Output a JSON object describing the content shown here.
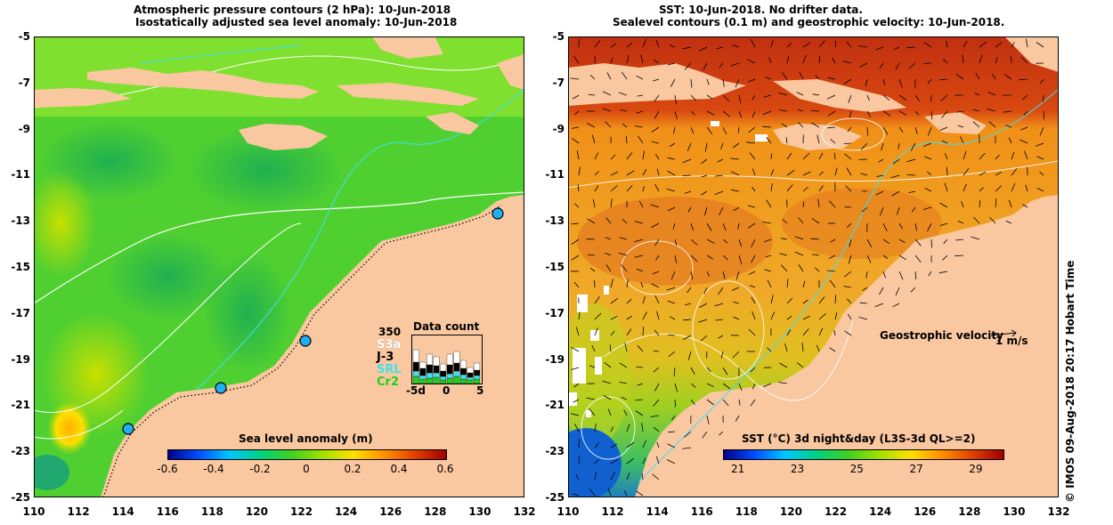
{
  "left_panel": {
    "title_line1": "Atmospheric pressure contours (2 hPa): 10-Jun-2018",
    "title_line2": "Isostatically adjusted sea level anomaly: 10-Jun-2018",
    "yticks": [
      "-5",
      "-7",
      "-9",
      "-11",
      "-13",
      "-15",
      "-17",
      "-19",
      "-21",
      "-23",
      "-25"
    ],
    "xticks": [
      "110",
      "112",
      "114",
      "116",
      "118",
      "120",
      "122",
      "124",
      "126",
      "128",
      "130",
      "132"
    ],
    "colorbar": {
      "label": "Sea level anomaly (m)",
      "ticks": [
        "-0.6",
        "-0.4",
        "-0.2",
        "0",
        "0.2",
        "0.4",
        "0.6"
      ],
      "colors": [
        "#00008b",
        "#0050ff",
        "#00c8ff",
        "#00d080",
        "#40d020",
        "#a0e000",
        "#ffe000",
        "#ff9000",
        "#e04000",
        "#a00000"
      ]
    },
    "data_count": {
      "title": "Data count",
      "max_label": "350",
      "legend": [
        {
          "label": "S3a",
          "color": "#ffffff"
        },
        {
          "label": "J-3",
          "color": "#000000"
        },
        {
          "label": "SRL",
          "color": "#40e0f0"
        },
        {
          "label": "Cr2",
          "color": "#20d020"
        }
      ],
      "xticks": [
        "-5d",
        "0",
        "5"
      ]
    }
  },
  "right_panel": {
    "title_line1": "SST: 10-Jun-2018. No drifter data.",
    "title_line2": "Sealevel contours (0.1 m) and geostrophic velocity: 10-Jun-2018.",
    "yticks": [
      "-5",
      "-7",
      "-9",
      "-11",
      "-13",
      "-15",
      "-17",
      "-19",
      "-21",
      "-23",
      "-25"
    ],
    "xticks": [
      "110",
      "112",
      "114",
      "116",
      "118",
      "120",
      "122",
      "124",
      "126",
      "128",
      "130",
      "132"
    ],
    "velocity_label": "Geostrophic velocity",
    "velocity_scale": "1 m/s",
    "colorbar": {
      "label": "SST (°C) 3d night&day (L3S-3d QL>=2)",
      "ticks": [
        "21",
        "23",
        "25",
        "27",
        "29"
      ],
      "colors": [
        "#00008b",
        "#0050ff",
        "#00c8ff",
        "#00d080",
        "#40d020",
        "#a0e000",
        "#ffe000",
        "#ff9000",
        "#e04000",
        "#a00000"
      ]
    }
  },
  "credit": "© IMOS 09-Aug-2018 20:17 Hobart Time"
}
